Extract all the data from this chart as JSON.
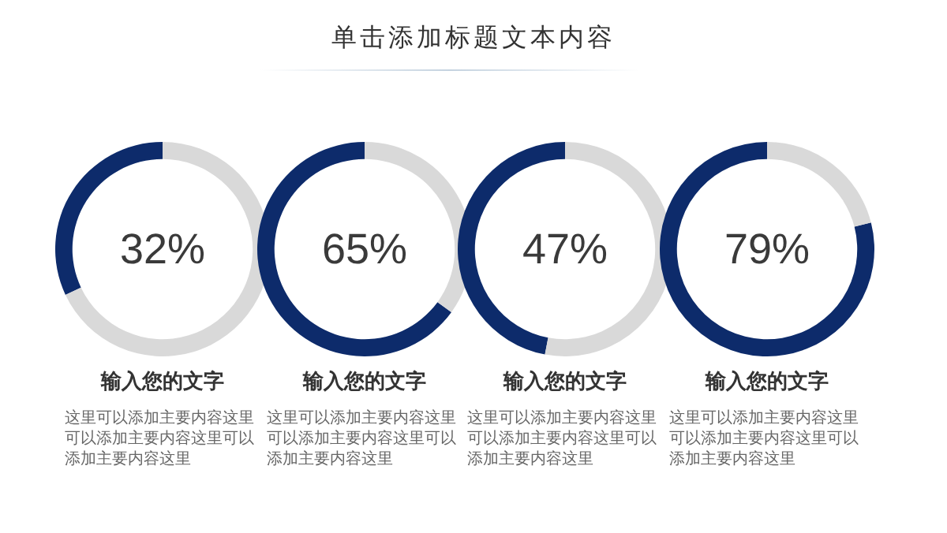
{
  "chart_data": [
    {
      "type": "other",
      "title": "单击添加标题文本内容"
    },
    {
      "type": "donut",
      "title": "32%",
      "subtitle": "输入您的文字",
      "annotations": [
        "这里可以添加主要内容这里可以添加主要内容这里可以添加主要内容这里"
      ],
      "categories": [
        null,
        null
      ],
      "values": [
        32,
        68
      ],
      "colors": [
        "#0d2b6b",
        "#d9d9d9"
      ]
    },
    {
      "type": "donut",
      "title": "65%",
      "subtitle": "输入您的文字",
      "annotations": [
        "这里可以添加主要内容这里可以添加主要内容这里可以添加主要内容这里"
      ],
      "categories": [
        null,
        null
      ],
      "values": [
        65,
        35
      ],
      "colors": [
        "#0d2b6b",
        "#d9d9d9"
      ]
    },
    {
      "type": "donut",
      "title": "47%",
      "subtitle": "输入您的文字",
      "annotations": [
        "这里可以添加主要内容这里可以添加主要内容这里可以添加主要内容这里"
      ],
      "categories": [
        null,
        null
      ],
      "values": [
        47,
        53
      ],
      "colors": [
        "#0d2b6b",
        "#d9d9d9"
      ]
    },
    {
      "type": "donut",
      "title": "79%",
      "subtitle": "输入您的文字",
      "annotations": [
        "这里可以添加主要内容这里可以添加主要内容这里可以添加主要内容这里"
      ],
      "categories": [
        null,
        null
      ],
      "values": [
        79,
        21
      ],
      "colors": [
        "#0d2b6b",
        "#d9d9d9"
      ]
    }
  ]
}
